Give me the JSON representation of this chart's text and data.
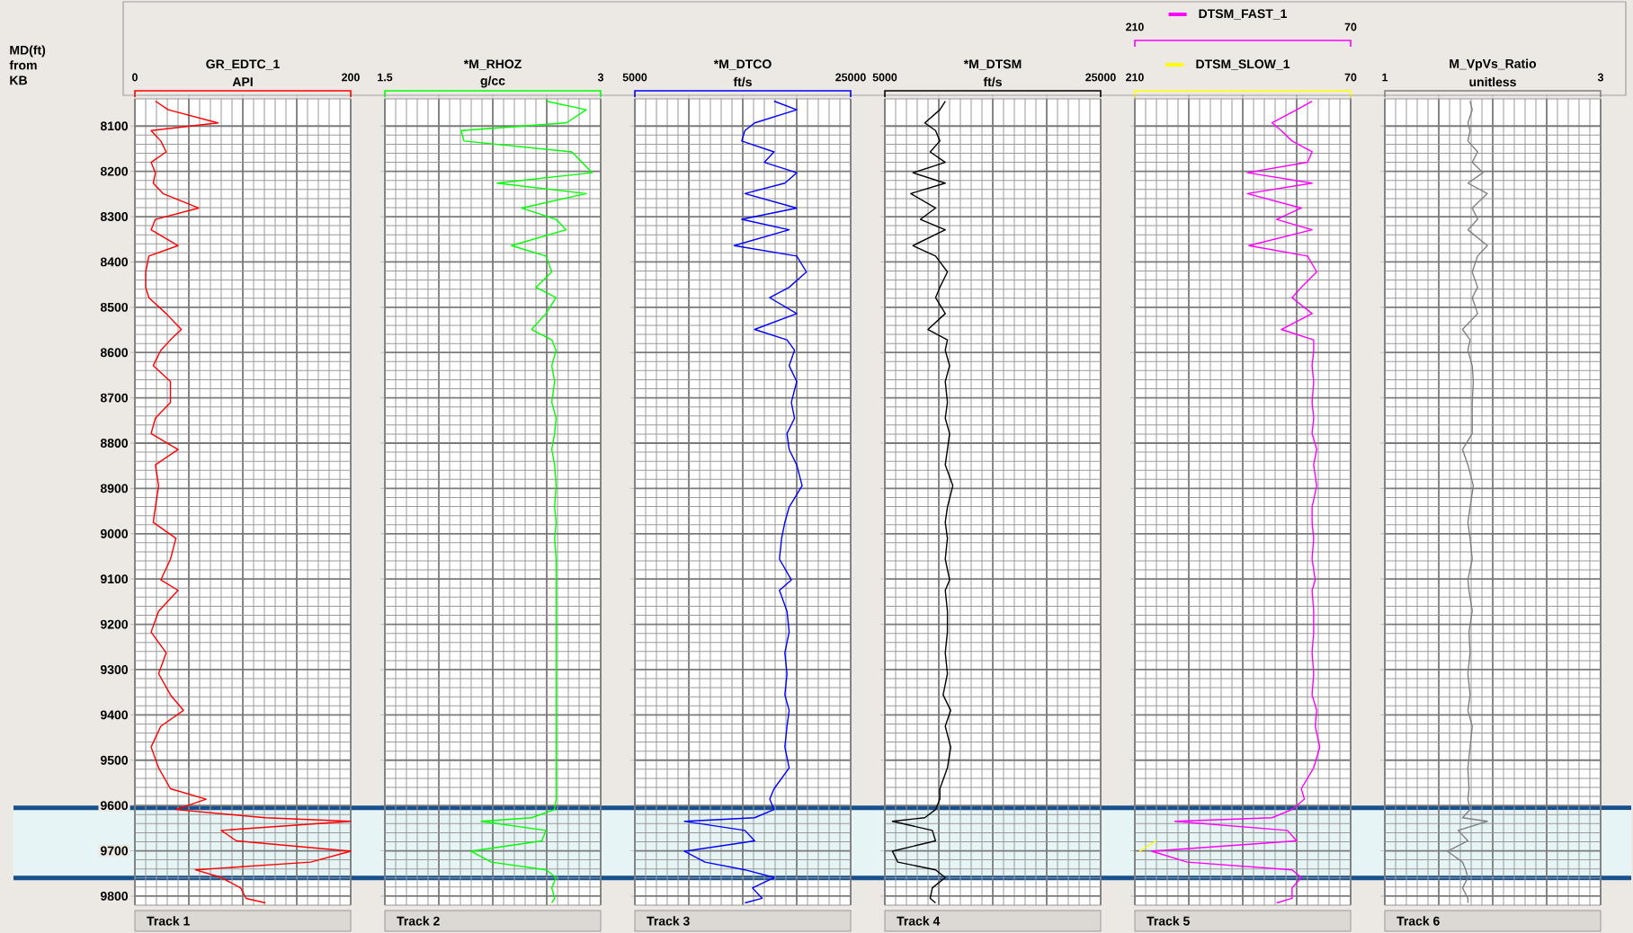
{
  "chart_data": [
    {
      "type": "line",
      "orientation": "horizontal",
      "title": "GR_EDTC_1",
      "xlabel": "API",
      "ylabel": "MD(ft) from KB",
      "annotations": [
        "Track 1"
      ],
      "grid": true,
      "x": [
        8045,
        8064,
        8093,
        8110,
        8133,
        8157,
        8180,
        8203,
        8226,
        8249,
        8281,
        8306,
        8329,
        8364,
        8387,
        8422,
        8456,
        8479,
        8514,
        8549,
        8572,
        8595,
        8629,
        8664,
        8710,
        8745,
        8779,
        8814,
        8848,
        8894,
        8941,
        8975,
        9010,
        9056,
        9102,
        9125,
        9171,
        9217,
        9263,
        9309,
        9356,
        9390,
        9425,
        9471,
        9517,
        9563,
        9586,
        9609,
        9627,
        9635,
        9655,
        9678,
        9701,
        9725,
        9742,
        9759,
        9782,
        9805,
        9815
      ],
      "xlim": [
        0,
        200
      ],
      "xticks": [
        0,
        {
          "value": 50,
          "label": null
        },
        {
          "value": 100,
          "label": null
        },
        {
          "value": 150,
          "label": null
        },
        200
      ],
      "ylim": [
        9820,
        8040
      ],
      "yticks": [
        8100,
        8200,
        8300,
        8400,
        8500,
        8600,
        8700,
        8800,
        8900,
        9000,
        9100,
        9200,
        9300,
        9400,
        9500,
        9600,
        9700,
        9800
      ],
      "bands": [
        {
          "axis": "y",
          "from": 9605,
          "to": 9760,
          "color": "#e6f4f6"
        }
      ],
      "ref_lines": [
        {
          "axis": "y",
          "value": 9605,
          "color": "#17508c"
        },
        {
          "axis": "y",
          "value": 9760,
          "color": "#17508c"
        }
      ],
      "series": [
        {
          "color": "#ff0000",
          "values": [
            19,
            31,
            77,
            15,
            24,
            29,
            15,
            19,
            17,
            26,
            59,
            19,
            15,
            40,
            13,
            10,
            10,
            13,
            29,
            43,
            33,
            24,
            17,
            33,
            33,
            19,
            15,
            40,
            19,
            22,
            19,
            17,
            38,
            33,
            24,
            40,
            22,
            15,
            29,
            22,
            33,
            45,
            24,
            15,
            22,
            33,
            66,
            38,
            121,
            200,
            80,
            94,
            200,
            163,
            56,
            80,
            98,
            103,
            121
          ]
        }
      ]
    },
    {
      "type": "line",
      "orientation": "horizontal",
      "title": "*M_RHOZ",
      "xlabel": "g/cc",
      "annotations": [
        "Track 2"
      ],
      "grid": true,
      "tick_labels": "x",
      "x": [
        8045,
        8064,
        8093,
        8110,
        8133,
        8157,
        8180,
        8203,
        8226,
        8249,
        8281,
        8306,
        8329,
        8364,
        8387,
        8422,
        8456,
        8479,
        8514,
        8549,
        8572,
        8595,
        8629,
        8664,
        8710,
        8745,
        8779,
        8814,
        8848,
        8894,
        8941,
        8975,
        9010,
        9056,
        9102,
        9125,
        9171,
        9217,
        9263,
        9309,
        9356,
        9390,
        9425,
        9471,
        9517,
        9563,
        9586,
        9609,
        9627,
        9635,
        9655,
        9678,
        9701,
        9725,
        9742,
        9759,
        9782,
        9805,
        9815
      ],
      "xlim": [
        1.5,
        3
      ],
      "xticks": [
        1.5,
        {
          "value": 1.875,
          "label": null
        },
        {
          "value": 2.25,
          "label": null
        },
        {
          "value": 2.625,
          "label": null
        },
        3
      ],
      "ylim": [
        9820,
        8040
      ],
      "yticks": [
        8100,
        8200,
        8300,
        8400,
        8500,
        8600,
        8700,
        8800,
        8900,
        9000,
        9100,
        9200,
        9300,
        9400,
        9500,
        9600,
        9700,
        9800
      ],
      "bands": [
        {
          "axis": "y",
          "from": 9605,
          "to": 9760,
          "color": "#e6f4f6"
        }
      ],
      "ref_lines": [
        {
          "axis": "y",
          "value": 9605,
          "color": "#17508c"
        },
        {
          "axis": "y",
          "value": 9760,
          "color": "#17508c"
        }
      ],
      "series": [
        {
          "color": "#00ff00",
          "values": [
            2.62,
            2.9,
            2.76,
            2.03,
            2.05,
            2.8,
            2.87,
            2.94,
            2.28,
            2.9,
            2.45,
            2.69,
            2.76,
            2.38,
            2.62,
            2.66,
            2.55,
            2.69,
            2.62,
            2.52,
            2.66,
            2.69,
            2.66,
            2.68,
            2.66,
            2.69,
            2.68,
            2.66,
            2.68,
            2.69,
            2.68,
            2.69,
            2.68,
            2.69,
            2.69,
            2.69,
            2.69,
            2.69,
            2.69,
            2.69,
            2.69,
            2.69,
            2.69,
            2.69,
            2.69,
            2.69,
            2.69,
            2.68,
            2.52,
            2.17,
            2.62,
            2.59,
            2.1,
            2.24,
            2.62,
            2.69,
            2.66,
            2.68,
            2.66
          ]
        }
      ]
    },
    {
      "type": "line",
      "orientation": "horizontal",
      "title": "*M_DTCO",
      "xlabel": "ft/s",
      "annotations": [
        "Track 3"
      ],
      "grid": true,
      "tick_labels": "x",
      "x": [
        8045,
        8064,
        8093,
        8110,
        8133,
        8157,
        8180,
        8203,
        8226,
        8249,
        8281,
        8306,
        8329,
        8364,
        8387,
        8422,
        8456,
        8479,
        8514,
        8549,
        8572,
        8595,
        8629,
        8664,
        8710,
        8745,
        8779,
        8814,
        8848,
        8894,
        8941,
        8975,
        9010,
        9056,
        9102,
        9125,
        9171,
        9217,
        9263,
        9309,
        9356,
        9390,
        9425,
        9471,
        9517,
        9563,
        9586,
        9609,
        9627,
        9635,
        9655,
        9678,
        9701,
        9725,
        9742,
        9759,
        9782,
        9805,
        9815
      ],
      "xlim": [
        5000,
        25000
      ],
      "xticks": [
        5000,
        {
          "value": 10000,
          "label": null
        },
        {
          "value": 15000,
          "label": null
        },
        {
          "value": 20000,
          "label": null
        },
        25000
      ],
      "ylim": [
        9820,
        8040
      ],
      "yticks": [
        8100,
        8200,
        8300,
        8400,
        8500,
        8600,
        8700,
        8800,
        8900,
        9000,
        9100,
        9200,
        9300,
        9400,
        9500,
        9600,
        9700,
        9800
      ],
      "bands": [
        {
          "axis": "y",
          "from": 9605,
          "to": 9760,
          "color": "#e6f4f6"
        }
      ],
      "ref_lines": [
        {
          "axis": "y",
          "value": 9605,
          "color": "#17508c"
        },
        {
          "axis": "y",
          "value": 9760,
          "color": "#17508c"
        }
      ],
      "series": [
        {
          "color": "#0000ff",
          "values": [
            17900,
            20000,
            16100,
            15200,
            14900,
            17900,
            17000,
            20000,
            18900,
            15200,
            20000,
            14900,
            19300,
            14200,
            20000,
            20900,
            19300,
            17500,
            20000,
            16100,
            19100,
            19800,
            19300,
            20000,
            19500,
            19800,
            19100,
            19300,
            20000,
            20500,
            19300,
            18900,
            18600,
            18400,
            19500,
            18400,
            19100,
            19300,
            18900,
            19100,
            18900,
            19300,
            19100,
            18900,
            19300,
            17900,
            17500,
            17900,
            16100,
            9600,
            15200,
            16100,
            9600,
            11500,
            15200,
            17900,
            15900,
            16800,
            15200
          ]
        }
      ]
    },
    {
      "type": "line",
      "orientation": "horizontal",
      "title": "*M_DTSM",
      "xlabel": "ft/s",
      "annotations": [
        "Track 4"
      ],
      "grid": true,
      "tick_labels": "x",
      "x": [
        8045,
        8064,
        8093,
        8110,
        8133,
        8157,
        8180,
        8203,
        8226,
        8249,
        8281,
        8306,
        8329,
        8364,
        8387,
        8422,
        8456,
        8479,
        8514,
        8549,
        8572,
        8595,
        8629,
        8664,
        8710,
        8745,
        8779,
        8814,
        8848,
        8894,
        8941,
        8975,
        9010,
        9056,
        9102,
        9125,
        9171,
        9217,
        9263,
        9309,
        9356,
        9390,
        9425,
        9471,
        9517,
        9563,
        9586,
        9609,
        9627,
        9635,
        9655,
        9678,
        9701,
        9725,
        9742,
        9759,
        9782,
        9805,
        9815
      ],
      "xlim": [
        5000,
        25000
      ],
      "xticks": [
        5000,
        {
          "value": 10000,
          "label": null
        },
        {
          "value": 15000,
          "label": null
        },
        {
          "value": 20000,
          "label": null
        },
        25000
      ],
      "ylim": [
        9820,
        8040
      ],
      "yticks": [
        8100,
        8200,
        8300,
        8400,
        8500,
        8600,
        8700,
        8800,
        8900,
        9000,
        9100,
        9200,
        9300,
        9400,
        9500,
        9600,
        9700,
        9800
      ],
      "bands": [
        {
          "axis": "y",
          "from": 9605,
          "to": 9760,
          "color": "#e6f4f6"
        }
      ],
      "ref_lines": [
        {
          "axis": "y",
          "value": 9605,
          "color": "#17508c"
        },
        {
          "axis": "y",
          "value": 9760,
          "color": "#17508c"
        }
      ],
      "series": [
        {
          "color": "#000000",
          "values": [
            10600,
            10100,
            8700,
            9700,
            10100,
            9200,
            10600,
            7600,
            10600,
            7400,
            9700,
            8300,
            10600,
            7600,
            9700,
            10800,
            10100,
            9700,
            10600,
            9000,
            10800,
            10600,
            11000,
            10600,
            10800,
            10600,
            11000,
            10800,
            10600,
            11300,
            10800,
            10600,
            10800,
            10600,
            11000,
            10600,
            10800,
            10800,
            10600,
            10800,
            10400,
            11100,
            10600,
            11100,
            10800,
            10100,
            10100,
            9700,
            8700,
            5700,
            9400,
            9700,
            5700,
            6200,
            9700,
            10600,
            9400,
            9200,
            9700
          ]
        }
      ]
    },
    {
      "type": "line",
      "orientation": "horizontal",
      "annotations": [
        "Track 5"
      ],
      "grid": true,
      "tick_labels": "x",
      "x": [
        8045,
        8064,
        8093,
        8110,
        8133,
        8157,
        8180,
        8203,
        8226,
        8249,
        8281,
        8306,
        8329,
        8364,
        8387,
        8422,
        8456,
        8479,
        8514,
        8549,
        8572,
        8595,
        8629,
        8664,
        8710,
        8745,
        8779,
        8814,
        8848,
        8894,
        8941,
        8975,
        9010,
        9056,
        9102,
        9125,
        9171,
        9217,
        9263,
        9309,
        9356,
        9390,
        9425,
        9471,
        9517,
        9563,
        9586,
        9609,
        9627,
        9635,
        9655,
        9678,
        9701,
        9725,
        9742,
        9759,
        9782,
        9805,
        9815
      ],
      "xlim": [
        210,
        70
      ],
      "xticks": [
        210,
        {
          "value": 175,
          "label": null
        },
        {
          "value": 140,
          "label": null
        },
        {
          "value": 105,
          "label": null
        },
        70
      ],
      "x2lim": [
        210,
        70
      ],
      "x2ticks": [
        210,
        {
          "value": 175,
          "label": null
        },
        {
          "value": 140,
          "label": null
        },
        {
          "value": 105,
          "label": null
        },
        70
      ],
      "ylim": [
        9820,
        8040
      ],
      "yticks": [
        8100,
        8200,
        8300,
        8400,
        8500,
        8600,
        8700,
        8800,
        8900,
        9000,
        9100,
        9200,
        9300,
        9400,
        9500,
        9600,
        9700,
        9800
      ],
      "bands": [
        {
          "axis": "y",
          "from": 9605,
          "to": 9760,
          "color": "#e6f4f6"
        }
      ],
      "ref_lines": [
        {
          "axis": "y",
          "value": 9605,
          "color": "#17508c"
        },
        {
          "axis": "y",
          "value": 9760,
          "color": "#17508c"
        }
      ],
      "legend": "top",
      "series": [
        {
          "name": "DTSM_SLOW_1",
          "color": "#ffff00",
          "values": [
            null,
            null,
            null,
            null,
            null,
            null,
            null,
            null,
            null,
            null,
            null,
            null,
            null,
            null,
            null,
            null,
            null,
            null,
            null,
            null,
            null,
            null,
            null,
            null,
            null,
            null,
            null,
            null,
            null,
            null,
            null,
            null,
            null,
            null,
            null,
            null,
            null,
            null,
            null,
            null,
            null,
            null,
            null,
            null,
            null,
            null,
            null,
            null,
            null,
            null,
            null,
            196,
            207,
            null,
            null,
            null,
            null,
            null,
            null
          ]
        },
        {
          "name": "DTSM_FAST_1",
          "color": "#ff00ff",
          "axis": "x2",
          "values": [
            95,
            105,
            121,
            115,
            108,
            95,
            98,
            137,
            95,
            137,
            102,
            118,
            95,
            136,
            98,
            92,
            102,
            108,
            95,
            115,
            94,
            94,
            95,
            94,
            95,
            94,
            95,
            92,
            94,
            92,
            95,
            95,
            94,
            95,
            93,
            95,
            94,
            94,
            95,
            94,
            95,
            92,
            93,
            90,
            94,
            102,
            100,
            108,
            121,
            184,
            111,
            105,
            199,
            176,
            108,
            102,
            108,
            108,
            118
          ]
        }
      ]
    },
    {
      "type": "line",
      "orientation": "horizontal",
      "title": "M_VpVs_Ratio",
      "xlabel": "unitless",
      "annotations": [
        "Track 6"
      ],
      "grid": true,
      "tick_labels": "x",
      "x": [
        8045,
        8064,
        8093,
        8110,
        8133,
        8157,
        8180,
        8203,
        8226,
        8249,
        8281,
        8306,
        8329,
        8364,
        8387,
        8422,
        8456,
        8479,
        8514,
        8549,
        8572,
        8595,
        8629,
        8664,
        8710,
        8745,
        8779,
        8814,
        8848,
        8894,
        8941,
        8975,
        9010,
        9056,
        9102,
        9125,
        9171,
        9217,
        9263,
        9309,
        9356,
        9390,
        9425,
        9471,
        9517,
        9563,
        9586,
        9609,
        9627,
        9635,
        9655,
        9678,
        9701,
        9725,
        9742,
        9759,
        9782,
        9805,
        9815
      ],
      "xlim": [
        1,
        3
      ],
      "xticks": [
        1,
        {
          "value": 1.5,
          "label": null
        },
        {
          "value": 2,
          "label": null
        },
        {
          "value": 2.5,
          "label": null
        },
        3
      ],
      "ylim": [
        9820,
        8040
      ],
      "yticks": [
        8100,
        8200,
        8300,
        8400,
        8500,
        8600,
        8700,
        8800,
        8900,
        9000,
        9100,
        9200,
        9300,
        9400,
        9500,
        9600,
        9700,
        9800
      ],
      "bands": [
        {
          "axis": "y",
          "from": 9605,
          "to": 9760,
          "color": "#e6f4f6"
        }
      ],
      "ref_lines": [
        {
          "axis": "y",
          "value": 9605,
          "color": "#17508c"
        },
        {
          "axis": "y",
          "value": 9760,
          "color": "#17508c"
        }
      ],
      "series": [
        {
          "color": "#808080",
          "values": [
            1.79,
            1.81,
            1.77,
            1.79,
            1.77,
            1.86,
            1.81,
            1.91,
            1.77,
            1.95,
            1.81,
            1.86,
            1.77,
            1.95,
            1.86,
            1.81,
            1.86,
            1.81,
            1.86,
            1.72,
            1.79,
            1.77,
            1.81,
            1.82,
            1.81,
            1.81,
            1.81,
            1.72,
            1.77,
            1.82,
            1.79,
            1.77,
            1.79,
            1.81,
            1.77,
            1.78,
            1.81,
            1.78,
            1.79,
            1.77,
            1.79,
            1.77,
            1.81,
            1.79,
            1.77,
            1.78,
            1.77,
            1.79,
            1.72,
            1.95,
            1.68,
            1.77,
            1.58,
            1.72,
            1.75,
            1.77,
            1.72,
            1.77,
            1.77
          ]
        }
      ]
    }
  ]
}
